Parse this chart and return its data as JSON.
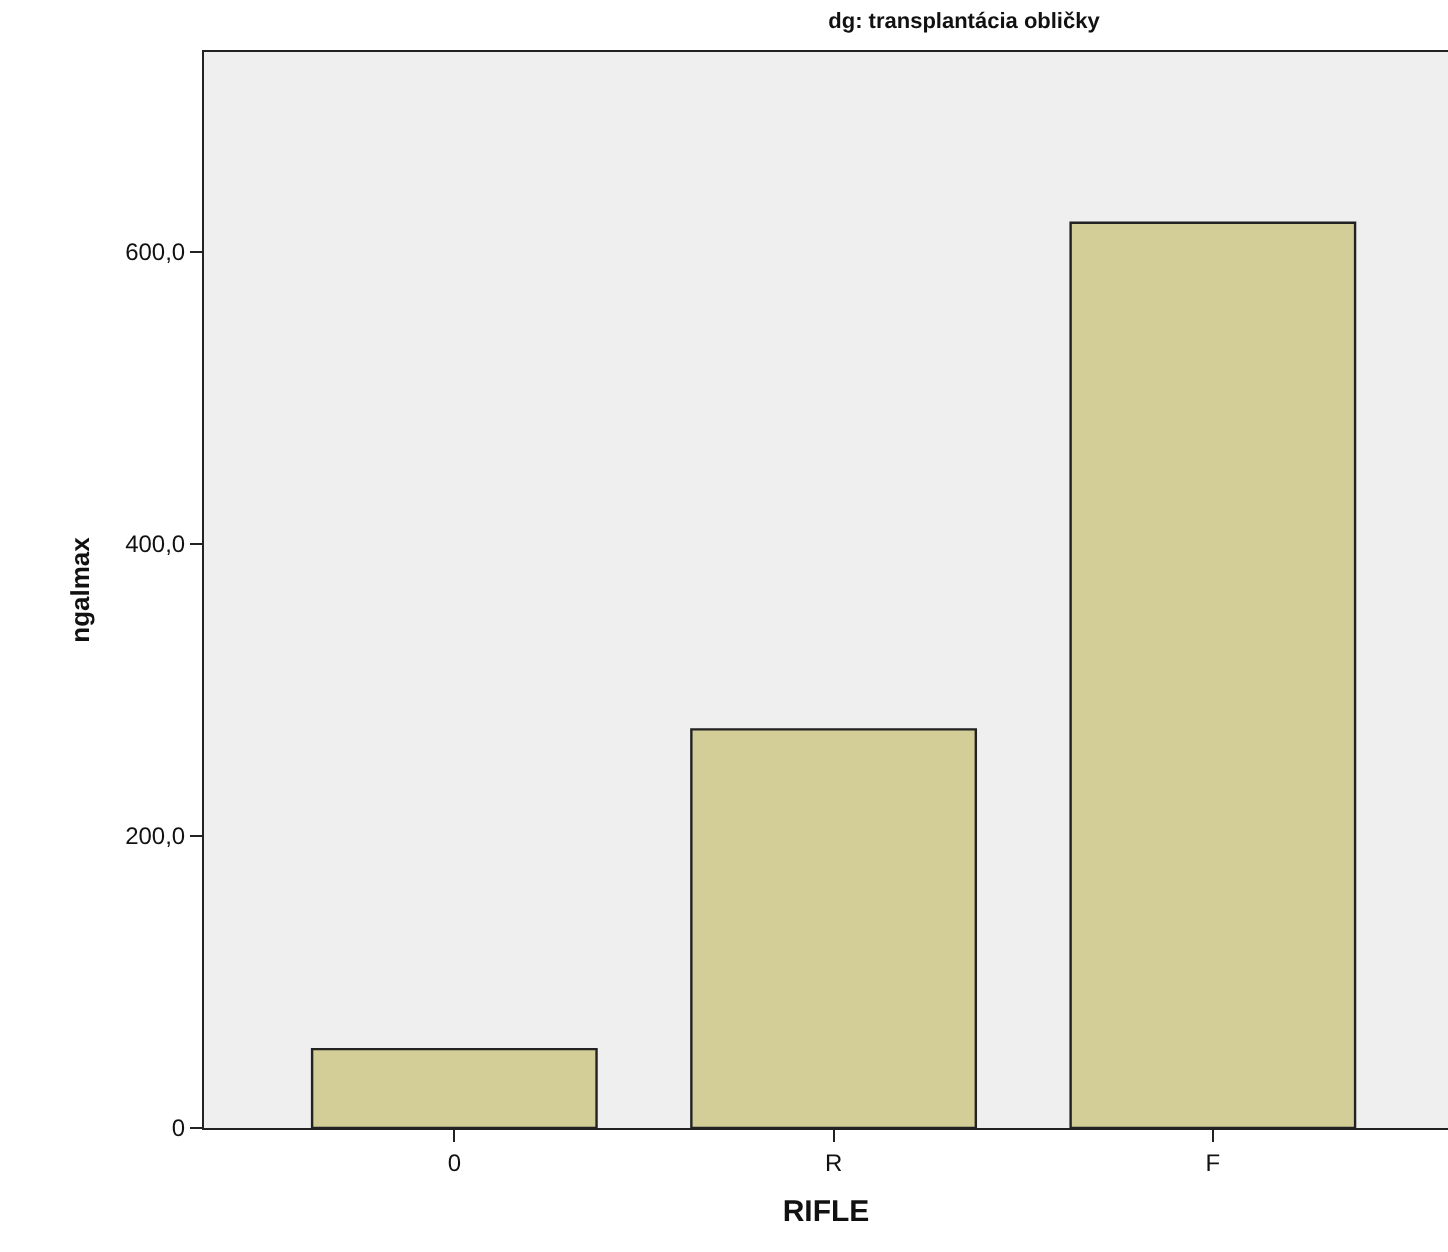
{
  "chart_data": {
    "type": "bar",
    "title": "dg: transplantácia obličky",
    "xlabel": "RIFLE",
    "ylabel": "ngalmax",
    "categories": [
      "0",
      "R",
      "F"
    ],
    "values": [
      54,
      273,
      620
    ],
    "color": "#d3cd98",
    "ylim": [
      0,
      737
    ],
    "yticks": [
      {
        "value": 0,
        "label": "0"
      },
      {
        "value": 200,
        "label": "200,0"
      },
      {
        "value": 400,
        "label": "400,0"
      },
      {
        "value": 600,
        "label": "600,0"
      }
    ],
    "grid": false
  }
}
